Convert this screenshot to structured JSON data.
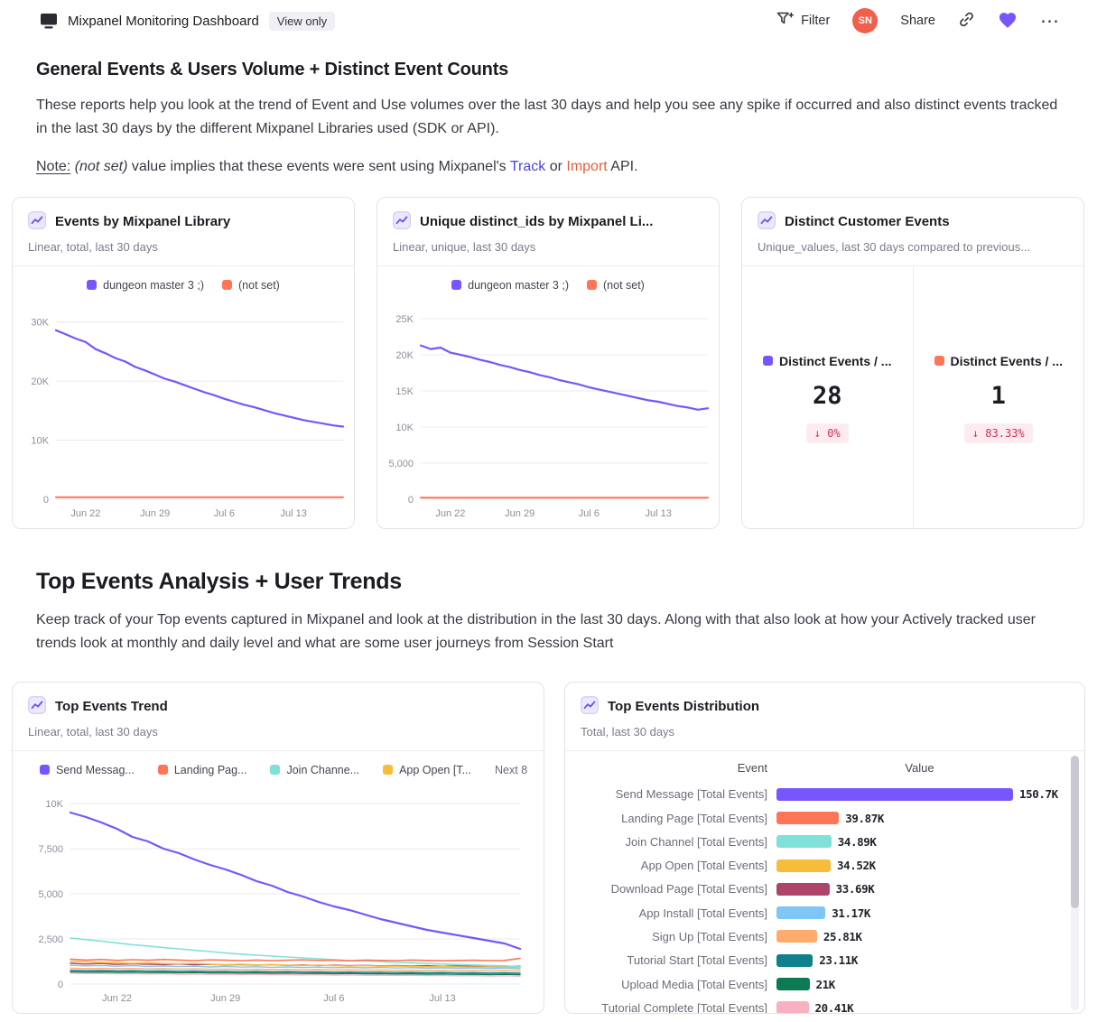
{
  "topbar": {
    "title": "Mixpanel Monitoring Dashboard",
    "view_badge": "View only",
    "filter": "Filter",
    "avatar": "SN",
    "share": "Share",
    "more": "⋯"
  },
  "section_general": {
    "heading": "General Events & Users Volume + Distinct Event Counts",
    "body": "These reports help you look at the trend of Event and Use volumes over the last 30 days and help you see any spike if occurred and also distinct events tracked in the last 30 days by the different Mixpanel Libraries used (SDK or API).",
    "note_label": "Note:",
    "note_italic": "(not set)",
    "note_mid": "value implies that these events were sent using Mixpanel's",
    "note_link_track": "Track",
    "note_or": "or",
    "note_link_import": "Import",
    "note_end": "API."
  },
  "section_top_events": {
    "heading": "Top Events Analysis + User Trends",
    "body": "Keep track of your Top events captured in Mixpanel and look at the distribution in the last 30 days. Along with that also look at how your Actively tracked user trends look at monthly and daily level and what are some user journeys from Session Start"
  },
  "cards": {
    "events_by_library": {
      "title": "Events by Mixpanel Library",
      "subtitle": "Linear, total, last 30 days",
      "legend": [
        {
          "label": "dungeon master 3 ;)",
          "color": "#7856FF"
        },
        {
          "label": "(not set)",
          "color": "#FF7557"
        }
      ]
    },
    "unique_ids": {
      "title": "Unique distinct_ids by Mixpanel Li...",
      "subtitle": "Linear, unique, last 30 days",
      "legend": [
        {
          "label": "dungeon master 3 ;)",
          "color": "#7856FF"
        },
        {
          "label": "(not set)",
          "color": "#FF7557"
        }
      ]
    },
    "distinct_events": {
      "title": "Distinct Customer Events",
      "subtitle": "Unique_values, last 30 days compared to previous...",
      "items": [
        {
          "label": "Distinct Events / ...",
          "value": "28",
          "change": "↓ 0%",
          "color": "#7856FF"
        },
        {
          "label": "Distinct Events / ...",
          "value": "1",
          "change": "↓ 83.33%",
          "color": "#FF7557"
        }
      ]
    },
    "top_events_trend": {
      "title": "Top Events Trend",
      "subtitle": "Linear, total, last 30 days",
      "legend": [
        {
          "label": "Send Messag...",
          "color": "#7856FF"
        },
        {
          "label": "Landing Pag...",
          "color": "#FF7557"
        },
        {
          "label": "Join Channe...",
          "color": "#80E1D9"
        },
        {
          "label": "App Open [T...",
          "color": "#F8BC3B"
        },
        {
          "label": "Next 8",
          "color": null
        }
      ]
    },
    "top_events_distribution": {
      "title": "Top Events Distribution",
      "subtitle": "Total, last 30 days",
      "columns": [
        "Event",
        "Value"
      ],
      "rows": [
        {
          "event": "Send Message [Total Events]",
          "value": "150.7K",
          "value_k": 150.7,
          "color": "#7856FF"
        },
        {
          "event": "Landing Page [Total Events]",
          "value": "39.87K",
          "value_k": 39.87,
          "color": "#FF7557"
        },
        {
          "event": "Join Channel [Total Events]",
          "value": "34.89K",
          "value_k": 34.89,
          "color": "#80E1D9"
        },
        {
          "event": "App Open [Total Events]",
          "value": "34.52K",
          "value_k": 34.52,
          "color": "#F8BC3B"
        },
        {
          "event": "Download Page [Total Events]",
          "value": "33.69K",
          "value_k": 33.69,
          "color": "#AD456B"
        },
        {
          "event": "App Install [Total Events]",
          "value": "31.17K",
          "value_k": 31.17,
          "color": "#7FC6F5"
        },
        {
          "event": "Sign Up [Total Events]",
          "value": "25.81K",
          "value_k": 25.81,
          "color": "#FFAB6E"
        },
        {
          "event": "Tutorial Start [Total Events]",
          "value": "23.11K",
          "value_k": 23.11,
          "color": "#10808C"
        },
        {
          "event": "Upload Media [Total Events]",
          "value": "21K",
          "value_k": 21,
          "color": "#0E7A53"
        },
        {
          "event": "Tutorial Complete [Total Events]",
          "value": "20.41K",
          "value_k": 20.41,
          "color": "#F9B1C1"
        }
      ]
    }
  },
  "chart_data": [
    {
      "id": "events_by_mixpanel_library",
      "type": "line",
      "title": "Events by Mixpanel Library",
      "ylim": [
        0,
        33000
      ],
      "yticks": [
        {
          "v": 0,
          "label": "0"
        },
        {
          "v": 10000,
          "label": "10K"
        },
        {
          "v": 20000,
          "label": "20K"
        },
        {
          "v": 30000,
          "label": "30K"
        }
      ],
      "xticks": [
        {
          "i": 3,
          "label": "Jun 22"
        },
        {
          "i": 10,
          "label": "Jun 29"
        },
        {
          "i": 17,
          "label": "Jul 6"
        },
        {
          "i": 24,
          "label": "Jul 13"
        }
      ],
      "series": [
        {
          "name": "dungeon master 3 ;)",
          "color": "#7856FF",
          "w": 2.2,
          "values": [
            28600,
            27900,
            27200,
            26600,
            25400,
            24700,
            23900,
            23300,
            22400,
            21800,
            21100,
            20400,
            19900,
            19300,
            18700,
            18100,
            17600,
            17000,
            16500,
            16000,
            15600,
            15100,
            14600,
            14200,
            13800,
            13400,
            13100,
            12800,
            12500,
            12300
          ]
        },
        {
          "name": "(not set)",
          "color": "#FF7557",
          "w": 2,
          "values": [
            340,
            340,
            340,
            340,
            340,
            340,
            340,
            340,
            340,
            340,
            340,
            340,
            340,
            340,
            340,
            340,
            340,
            340,
            340,
            340,
            340,
            340,
            340,
            340,
            340,
            340,
            340,
            340,
            340,
            340
          ]
        }
      ]
    },
    {
      "id": "unique_distinct_ids",
      "type": "line",
      "title": "Unique distinct_ids by Mixpanel Li...",
      "ylim": [
        0,
        27000
      ],
      "yticks": [
        {
          "v": 0,
          "label": "0"
        },
        {
          "v": 5000,
          "label": "5,000"
        },
        {
          "v": 10000,
          "label": "10K"
        },
        {
          "v": 15000,
          "label": "15K"
        },
        {
          "v": 20000,
          "label": "20K"
        },
        {
          "v": 25000,
          "label": "25K"
        }
      ],
      "xticks": [
        {
          "i": 3,
          "label": "Jun 22"
        },
        {
          "i": 10,
          "label": "Jun 29"
        },
        {
          "i": 17,
          "label": "Jul 6"
        },
        {
          "i": 24,
          "label": "Jul 13"
        }
      ],
      "series": [
        {
          "name": "dungeon master 3 ;)",
          "color": "#7856FF",
          "w": 2.2,
          "values": [
            21300,
            20800,
            21000,
            20300,
            20000,
            19700,
            19300,
            19000,
            18600,
            18300,
            17900,
            17600,
            17200,
            16900,
            16500,
            16200,
            15900,
            15500,
            15200,
            14900,
            14600,
            14300,
            14000,
            13700,
            13500,
            13200,
            12900,
            12700,
            12400,
            12600
          ]
        },
        {
          "name": "(not set)",
          "color": "#FF7557",
          "w": 2,
          "values": [
            230,
            230,
            230,
            230,
            230,
            230,
            230,
            230,
            230,
            230,
            230,
            230,
            230,
            230,
            230,
            230,
            230,
            230,
            230,
            230,
            230,
            230,
            230,
            230,
            230,
            230,
            230,
            230,
            230,
            230
          ]
        }
      ]
    },
    {
      "id": "top_events_trend",
      "type": "line",
      "title": "Top Events Trend",
      "ylim": [
        0,
        10800
      ],
      "yticks": [
        {
          "v": 0,
          "label": "0"
        },
        {
          "v": 2500,
          "label": "2,500"
        },
        {
          "v": 5000,
          "label": "5,000"
        },
        {
          "v": 7500,
          "label": "7,500"
        },
        {
          "v": 10000,
          "label": "10K"
        }
      ],
      "xticks": [
        {
          "i": 3,
          "label": "Jun 22"
        },
        {
          "i": 10,
          "label": "Jun 29"
        },
        {
          "i": 17,
          "label": "Jul 6"
        },
        {
          "i": 24,
          "label": "Jul 13"
        }
      ],
      "series": [
        {
          "name": "Send Message [Total Events]",
          "color": "#7856FF",
          "w": 2.2,
          "values": [
            9500,
            9250,
            8950,
            8600,
            8150,
            7900,
            7500,
            7250,
            6900,
            6600,
            6350,
            6050,
            5700,
            5450,
            5100,
            4850,
            4550,
            4300,
            4100,
            3850,
            3600,
            3400,
            3200,
            3000,
            2850,
            2700,
            2550,
            2400,
            2250,
            1950
          ]
        },
        {
          "name": "Landing Page [Total Events]",
          "color": "#FF7557",
          "w": 1.6,
          "values": [
            1380,
            1330,
            1360,
            1310,
            1350,
            1320,
            1360,
            1330,
            1300,
            1340,
            1320,
            1300,
            1330,
            1300,
            1320,
            1340,
            1310,
            1320,
            1290,
            1330,
            1310,
            1300,
            1330,
            1310,
            1290,
            1310,
            1320,
            1300,
            1310,
            1420
          ]
        },
        {
          "name": "Join Channel [Total Events]",
          "color": "#80E1D9",
          "w": 1.6,
          "values": [
            2550,
            2460,
            2380,
            2280,
            2180,
            2110,
            2020,
            1950,
            1870,
            1800,
            1720,
            1660,
            1600,
            1550,
            1500,
            1450,
            1400,
            1350,
            1300,
            1280,
            1250,
            1200,
            1180,
            1150,
            1110,
            1080,
            1060,
            1030,
            1010,
            960
          ]
        },
        {
          "name": "App Open [Total Events]",
          "color": "#F8BC3B",
          "w": 1.6,
          "values": [
            1260,
            1230,
            1200,
            1180,
            1150,
            1170,
            1140,
            1120,
            1150,
            1100,
            1080,
            1100,
            1060,
            1080,
            1050,
            1030,
            1050,
            1020,
            1000,
            1020,
            990,
            1000,
            980,
            960,
            980,
            950,
            940,
            950,
            930,
            920
          ]
        },
        {
          "name": "Download Page [Total Events]",
          "color": "#AD456B",
          "w": 1.4,
          "values": [
            1150,
            1110,
            1140,
            1090,
            1120,
            1100,
            1080,
            1110,
            1070,
            1090,
            1060,
            1080,
            1050,
            1070,
            1040,
            1060,
            1030,
            1050,
            1020,
            1040,
            1010,
            1030,
            1000,
            1020,
            990,
            1010,
            980,
            1000,
            970,
            990
          ]
        },
        {
          "name": "App Install [Total Events]",
          "color": "#7FC6F5",
          "w": 1.4,
          "values": [
            1040,
            1010,
            1030,
            990,
            1020,
            980,
            1000,
            970,
            990,
            950,
            980,
            940,
            960,
            930,
            950,
            920,
            940,
            910,
            930,
            900,
            920,
            890,
            910,
            880,
            900,
            870,
            890,
            860,
            880,
            850
          ]
        },
        {
          "name": "Sign Up [Total Events]",
          "color": "#FFAB6E",
          "w": 1.4,
          "values": [
            880,
            860,
            870,
            850,
            860,
            840,
            850,
            830,
            840,
            820,
            830,
            810,
            820,
            800,
            810,
            790,
            800,
            780,
            790,
            770,
            780,
            760,
            770,
            750,
            760,
            740,
            750,
            730,
            740,
            720
          ]
        },
        {
          "name": "Tutorial Start [Total Events]",
          "color": "#10808C",
          "w": 1.4,
          "values": [
            760,
            745,
            750,
            730,
            740,
            720,
            730,
            710,
            720,
            700,
            710,
            690,
            700,
            680,
            690,
            670,
            680,
            660,
            670,
            650,
            660,
            640,
            650,
            630,
            640,
            620,
            630,
            610,
            620,
            600
          ]
        },
        {
          "name": "Upload Media [Total Events]",
          "color": "#0E7A53",
          "w": 1.4,
          "values": [
            680,
            665,
            670,
            650,
            660,
            640,
            650,
            630,
            640,
            620,
            630,
            610,
            620,
            600,
            610,
            590,
            600,
            580,
            590,
            570,
            580,
            560,
            570,
            550,
            560,
            540,
            550,
            530,
            540,
            520
          ]
        },
        {
          "name": "Tutorial Complete [Total Events]",
          "color": "#F9B1C1",
          "w": 1.4,
          "values": [
            600,
            585,
            590,
            570,
            580,
            560,
            570,
            550,
            560,
            540,
            550,
            530,
            540,
            520,
            530,
            510,
            520,
            500,
            510,
            490,
            500,
            480,
            490,
            470,
            480,
            460,
            470,
            450,
            460,
            440
          ]
        }
      ]
    }
  ]
}
